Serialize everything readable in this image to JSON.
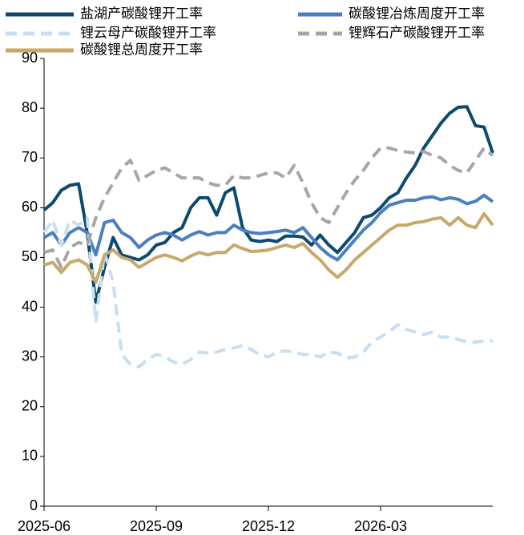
{
  "chart_data": {
    "type": "line",
    "categories": [
      "2025-06",
      null,
      null,
      null,
      null,
      null,
      null,
      null,
      null,
      null,
      null,
      null,
      null,
      "2025-09",
      null,
      null,
      null,
      null,
      null,
      null,
      null,
      null,
      null,
      null,
      null,
      null,
      "2025-12",
      null,
      null,
      null,
      null,
      null,
      null,
      null,
      null,
      null,
      null,
      null,
      null,
      "2026-03",
      null,
      null,
      null,
      null,
      null,
      null,
      null,
      null,
      null,
      null,
      null,
      null,
      null
    ],
    "ylim": [
      0,
      90
    ],
    "yticks": [
      0,
      10,
      20,
      30,
      40,
      50,
      60,
      70,
      80,
      90
    ],
    "grid": false,
    "legend": "top",
    "series": [
      {
        "name": "盐湖产碳酸锂开工率",
        "color": "#0d4a6e",
        "dashed": false,
        "values": [
          59.5,
          61,
          63.5,
          64.5,
          64.8,
          55,
          41,
          48,
          54,
          50.5,
          50,
          49.5,
          50.5,
          52.5,
          53,
          55,
          56,
          60,
          62,
          62,
          58.5,
          63,
          64,
          56,
          53.5,
          53.2,
          53.5,
          53.2,
          54.3,
          54.3,
          54.1,
          52.5,
          54.5,
          52.5,
          51,
          53,
          55,
          58,
          58.5,
          60,
          62,
          63,
          66,
          68.5,
          72,
          74.5,
          77,
          79,
          80.2,
          80.3,
          76.5,
          76.2,
          71
        ]
      },
      {
        "name": "碳酸锂冶炼周度开工率",
        "color": "#4a7fc1",
        "dashed": false,
        "values": [
          54,
          55,
          52.5,
          55,
          56,
          55,
          50.5,
          57,
          57.5,
          55,
          54,
          52,
          53.5,
          54.5,
          55,
          54.5,
          53.5,
          54.5,
          55.2,
          54.5,
          55,
          55,
          56.5,
          55.5,
          55,
          54.8,
          55,
          55.2,
          55.5,
          55,
          56,
          54,
          52,
          50.5,
          49.5,
          51.5,
          53.5,
          55.5,
          57,
          59,
          60.5,
          61,
          61.5,
          61.5,
          62,
          62.2,
          61.6,
          62,
          61.7,
          60.8,
          61.3,
          62.5,
          61.2
        ]
      },
      {
        "name": "锂云母产碳酸锂开工率",
        "color": "#c9def0",
        "dashed": true,
        "values": [
          55,
          57.5,
          52.5,
          57.5,
          56.5,
          58,
          37,
          51,
          45,
          30.5,
          28.5,
          28,
          29.5,
          30.5,
          30,
          29,
          28.5,
          29.5,
          31,
          30.8,
          31,
          31.5,
          31.8,
          32.3,
          31.5,
          30.5,
          30,
          31,
          31.2,
          31,
          30.5,
          30.5,
          30,
          31,
          30.8,
          29.8,
          30,
          31,
          33,
          34,
          35,
          36.5,
          35.5,
          35,
          34.5,
          35,
          34,
          34,
          33.5,
          33,
          33,
          33.2,
          33.3
        ]
      },
      {
        "name": "锂辉石产碳酸锂开工率",
        "color": "#a6a6a6",
        "dashed": true,
        "values": [
          51,
          51.5,
          48,
          52,
          53,
          52.5,
          58,
          62,
          65,
          68,
          69.5,
          65.5,
          66.5,
          67.5,
          68,
          67,
          66,
          66,
          66,
          65,
          64.5,
          64.5,
          66.5,
          66,
          66,
          66.5,
          67,
          67,
          66,
          68.5,
          65,
          61,
          58,
          57,
          60,
          63,
          65.5,
          67.5,
          70,
          72,
          72,
          71.5,
          71.2,
          71,
          71.3,
          70.5,
          70,
          68.5,
          67.5,
          67,
          69.5,
          72,
          70.5
        ]
      },
      {
        "name": "碳酸锂总周度开工率",
        "color": "#c8a86b",
        "dashed": false,
        "values": [
          48.5,
          49,
          47,
          49,
          49.5,
          48.5,
          45,
          50.5,
          51.5,
          50,
          49.5,
          48,
          49,
          50,
          50.5,
          50,
          49.3,
          50.3,
          51,
          50.5,
          51,
          51,
          52.5,
          51.8,
          51.2,
          51.3,
          51.5,
          52,
          52.5,
          52,
          52.8,
          51,
          49.5,
          47.5,
          46,
          47.5,
          49.5,
          51,
          52.5,
          54,
          55.5,
          56.5,
          56.5,
          57,
          57.2,
          57.7,
          58,
          56.5,
          58,
          56.5,
          56,
          58.8,
          56.5
        ]
      }
    ]
  }
}
